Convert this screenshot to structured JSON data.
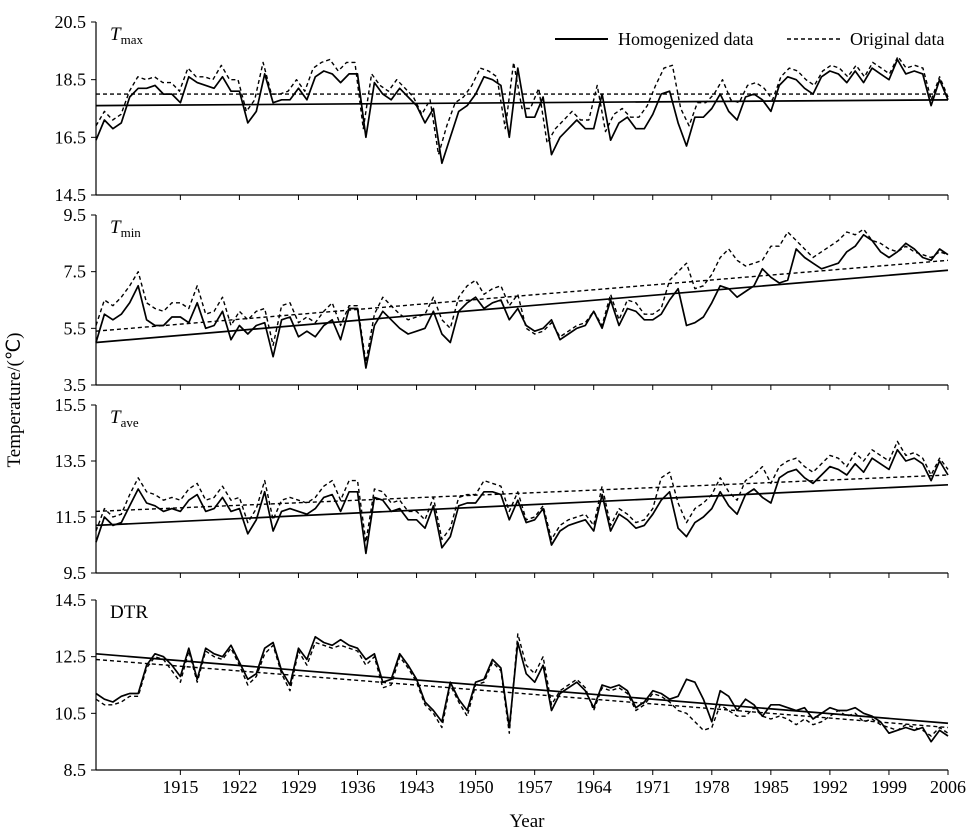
{
  "chart_data": {
    "type": "line",
    "ylabel": "Temperature/(℃)",
    "xlabel": "Year",
    "x_ticks": [
      "1915",
      "1922",
      "1929",
      "1936",
      "1943",
      "1950",
      "1957",
      "1964",
      "1971",
      "1978",
      "1985",
      "1992",
      "1999",
      "2006"
    ],
    "x_range": [
      1905,
      2006
    ],
    "legend": {
      "position": "top-right",
      "entries": [
        {
          "label": "Homogenized data",
          "style": "solid"
        },
        {
          "label": "Original data",
          "style": "dashed"
        }
      ]
    },
    "panels": [
      {
        "label_main": "T",
        "label_sub": "max",
        "ylim": [
          14.5,
          20.5
        ],
        "yticks": [
          "20.5",
          "18.5",
          "16.5",
          "14.5"
        ],
        "series": [
          {
            "name": "Homogenized data",
            "style": "solid",
            "values": [
              16.4,
              17.1,
              16.8,
              17.0,
              17.9,
              18.2,
              18.2,
              18.3,
              18.0,
              18.0,
              17.7,
              18.6,
              18.4,
              18.3,
              18.2,
              18.6,
              18.1,
              18.1,
              17.0,
              17.4,
              18.7,
              17.7,
              17.8,
              17.8,
              18.2,
              17.8,
              18.6,
              18.8,
              18.7,
              18.4,
              18.7,
              18.7,
              16.5,
              18.4,
              18.0,
              17.8,
              18.2,
              17.9,
              17.6,
              17.0,
              17.5,
              15.6,
              16.5,
              17.4,
              17.6,
              18.0,
              18.6,
              18.5,
              18.3,
              16.5,
              18.9,
              17.2,
              17.2,
              17.9,
              15.9,
              16.5,
              16.8,
              17.1,
              16.8,
              16.8,
              18.0,
              16.4,
              17.0,
              17.2,
              16.8,
              16.8,
              17.3,
              18.0,
              18.1,
              17.0,
              16.2,
              17.2,
              17.2,
              17.5,
              18.0,
              17.4,
              17.1,
              17.9,
              18.0,
              17.8,
              17.4,
              18.3,
              18.6,
              18.5,
              18.2,
              18.0,
              18.6,
              18.8,
              18.7,
              18.4,
              18.8,
              18.4,
              18.9,
              18.7,
              18.5,
              19.2,
              18.7,
              18.8,
              18.7,
              17.6,
              18.5,
              17.8
            ],
            "trend": [
              17.6,
              17.8
            ]
          },
          {
            "name": "Original data",
            "style": "dashed",
            "values": [
              16.9,
              17.4,
              17.1,
              17.3,
              18.1,
              18.6,
              18.5,
              18.6,
              18.4,
              18.4,
              18.1,
              18.9,
              18.6,
              18.6,
              18.5,
              19.0,
              18.5,
              18.5,
              17.4,
              17.8,
              19.1,
              18.0,
              18.0,
              18.1,
              18.5,
              18.1,
              18.9,
              19.1,
              19.2,
              18.8,
              19.1,
              19.1,
              16.8,
              18.7,
              18.3,
              18.1,
              18.5,
              18.2,
              17.9,
              17.3,
              17.8,
              15.9,
              16.9,
              17.7,
              17.9,
              18.3,
              18.9,
              18.8,
              18.6,
              16.8,
              19.1,
              17.5,
              17.5,
              18.2,
              16.3,
              16.8,
              17.1,
              17.4,
              17.1,
              17.1,
              18.3,
              16.7,
              17.3,
              17.5,
              17.2,
              17.2,
              17.6,
              18.3,
              18.9,
              19.0,
              17.5,
              16.9,
              17.7,
              17.7,
              18.0,
              18.5,
              17.8,
              17.7,
              18.3,
              18.4,
              18.2,
              17.8,
              18.6,
              18.9,
              18.8,
              18.5,
              18.3,
              18.8,
              19.0,
              18.9,
              18.6,
              19.0,
              18.6,
              19.1,
              18.9,
              18.7,
              19.3,
              18.9,
              19.0,
              18.9,
              17.8,
              18.6,
              17.9
            ],
            "trend": [
              18.0,
              18.0
            ]
          }
        ]
      },
      {
        "label_main": "T",
        "label_sub": "min",
        "ylim": [
          3.5,
          9.5
        ],
        "yticks": [
          "9.5",
          "7.5",
          "5.5",
          "3.5"
        ],
        "series": [
          {
            "name": "Homogenized data",
            "style": "solid",
            "values": [
              5.0,
              6.0,
              5.8,
              6.0,
              6.4,
              7.0,
              5.8,
              5.6,
              5.6,
              5.9,
              5.9,
              5.7,
              6.4,
              5.5,
              5.6,
              6.1,
              5.1,
              5.6,
              5.3,
              5.6,
              5.7,
              4.5,
              5.8,
              5.9,
              5.2,
              5.4,
              5.2,
              5.6,
              5.8,
              5.1,
              6.2,
              6.2,
              4.1,
              5.6,
              6.1,
              5.8,
              5.5,
              5.3,
              5.4,
              5.5,
              6.1,
              5.3,
              5.0,
              6.1,
              6.4,
              6.6,
              6.2,
              6.4,
              6.5,
              5.8,
              6.2,
              5.6,
              5.4,
              5.5,
              5.8,
              5.1,
              5.3,
              5.5,
              5.6,
              6.1,
              5.5,
              6.5,
              5.6,
              6.2,
              6.1,
              5.8,
              5.8,
              6.0,
              6.5,
              6.9,
              5.6,
              5.7,
              5.9,
              6.4,
              7.0,
              6.9,
              6.6,
              6.8,
              7.0,
              7.6,
              7.3,
              7.1,
              7.2,
              8.3,
              8.0,
              7.8,
              7.6,
              7.7,
              7.8,
              8.2,
              8.4,
              8.8,
              8.6,
              8.2,
              8.0,
              8.2,
              8.5,
              8.3,
              8.0,
              7.9,
              8.3,
              8.1
            ],
            "trend": [
              5.0,
              7.55
            ]
          },
          {
            "name": "Original data",
            "style": "dashed",
            "values": [
              5.6,
              6.5,
              6.3,
              6.6,
              7.0,
              7.5,
              6.4,
              6.2,
              6.1,
              6.4,
              6.4,
              6.2,
              7.0,
              6.0,
              6.1,
              6.6,
              5.6,
              6.1,
              5.8,
              6.1,
              6.2,
              4.9,
              6.3,
              6.4,
              5.7,
              5.9,
              5.7,
              6.1,
              6.4,
              5.6,
              6.3,
              6.3,
              4.3,
              6.0,
              6.6,
              6.3,
              6.0,
              5.8,
              5.9,
              6.0,
              6.6,
              5.8,
              5.5,
              6.6,
              7.0,
              7.2,
              6.7,
              6.9,
              7.0,
              6.3,
              6.7,
              5.5,
              5.3,
              5.4,
              5.7,
              5.2,
              5.4,
              5.6,
              5.7,
              6.1,
              5.6,
              6.7,
              5.8,
              6.5,
              6.4,
              6.0,
              6.0,
              6.2,
              7.2,
              7.5,
              7.8,
              6.9,
              7.0,
              7.4,
              8.0,
              8.3,
              7.9,
              7.7,
              7.8,
              7.9,
              8.4,
              8.4,
              8.9,
              8.6,
              8.3,
              8.0,
              8.2,
              8.4,
              8.6,
              8.9,
              8.8,
              9.0,
              8.6,
              8.5,
              8.3,
              8.2,
              8.4,
              8.2,
              8.1,
              8.0,
              8.2,
              8.1
            ],
            "trend": [
              5.4,
              7.9
            ]
          }
        ]
      },
      {
        "label_main": "T",
        "label_sub": "ave",
        "ylim": [
          9.5,
          15.5
        ],
        "yticks": [
          "15.5",
          "13.5",
          "11.5",
          "9.5"
        ],
        "series": [
          {
            "name": "Homogenized data",
            "style": "solid",
            "values": [
              10.6,
              11.5,
              11.2,
              11.3,
              11.9,
              12.5,
              12.0,
              11.9,
              11.7,
              11.8,
              11.7,
              12.1,
              12.3,
              11.7,
              11.8,
              12.2,
              11.7,
              11.8,
              10.9,
              11.4,
              12.4,
              11.0,
              11.7,
              11.8,
              11.7,
              11.6,
              11.8,
              12.2,
              12.3,
              11.7,
              12.4,
              12.4,
              10.2,
              12.2,
              12.1,
              11.7,
              11.8,
              11.4,
              11.4,
              11.1,
              11.9,
              10.4,
              10.8,
              11.9,
              12.0,
              12.0,
              12.4,
              12.4,
              12.3,
              11.4,
              12.1,
              11.3,
              11.4,
              11.8,
              10.5,
              11.0,
              11.2,
              11.3,
              11.4,
              11.0,
              12.3,
              11.0,
              11.6,
              11.4,
              11.1,
              11.2,
              11.6,
              12.1,
              12.4,
              11.1,
              10.8,
              11.3,
              11.5,
              11.8,
              12.4,
              11.9,
              11.6,
              12.3,
              12.5,
              12.2,
              12.0,
              12.9,
              13.1,
              13.2,
              12.9,
              12.7,
              13.0,
              13.3,
              13.2,
              13.0,
              13.4,
              13.1,
              13.6,
              13.4,
              13.2,
              13.9,
              13.5,
              13.6,
              13.4,
              12.8,
              13.5,
              13.0
            ],
            "trend": [
              11.2,
              12.65
            ]
          },
          {
            "name": "Original data",
            "style": "dashed",
            "values": [
              11.0,
              11.8,
              11.5,
              11.6,
              12.3,
              12.9,
              12.4,
              12.3,
              12.1,
              12.2,
              12.1,
              12.5,
              12.7,
              12.1,
              12.2,
              12.6,
              12.1,
              12.2,
              11.3,
              11.8,
              12.8,
              11.4,
              12.1,
              12.2,
              12.1,
              12.0,
              12.2,
              12.6,
              12.8,
              12.1,
              12.8,
              12.8,
              10.6,
              12.5,
              12.4,
              12.0,
              12.1,
              11.7,
              11.7,
              11.4,
              12.2,
              10.7,
              11.1,
              12.2,
              12.3,
              12.3,
              12.8,
              12.7,
              12.6,
              11.7,
              12.4,
              11.4,
              11.5,
              11.9,
              10.7,
              11.2,
              11.4,
              11.5,
              11.6,
              11.2,
              12.6,
              11.2,
              11.8,
              11.6,
              11.3,
              11.4,
              11.8,
              12.9,
              13.1,
              12.0,
              11.3,
              11.8,
              12.0,
              12.3,
              12.9,
              12.4,
              12.1,
              12.8,
              13.0,
              13.3,
              12.7,
              13.3,
              13.5,
              13.6,
              13.3,
              13.1,
              13.4,
              13.7,
              13.6,
              13.3,
              13.8,
              13.5,
              13.9,
              13.7,
              13.5,
              14.2,
              13.7,
              13.8,
              13.6,
              13.0,
              13.6,
              13.2
            ],
            "trend": [
              11.7,
              13.0
            ]
          }
        ]
      },
      {
        "label_main": "DTR",
        "label_sub": "",
        "ylim": [
          8.5,
          14.5
        ],
        "yticks": [
          "14.5",
          "12.5",
          "10.5",
          "8.5"
        ],
        "series": [
          {
            "name": "Homogenized data",
            "style": "solid",
            "values": [
              11.2,
              11.0,
              10.9,
              11.1,
              11.2,
              11.2,
              12.2,
              12.6,
              12.5,
              12.2,
              11.8,
              12.8,
              11.7,
              12.8,
              12.6,
              12.5,
              12.9,
              12.3,
              11.7,
              11.9,
              12.8,
              13.0,
              12.0,
              11.5,
              12.8,
              12.4,
              13.2,
              13.0,
              12.9,
              13.1,
              12.9,
              12.8,
              12.4,
              12.6,
              11.6,
              11.7,
              12.6,
              12.2,
              11.7,
              10.9,
              10.6,
              10.2,
              11.6,
              11.0,
              10.6,
              11.6,
              11.7,
              12.4,
              12.1,
              10.0,
              13.0,
              11.9,
              11.6,
              12.2,
              10.6,
              11.2,
              11.4,
              11.6,
              11.3,
              10.7,
              11.5,
              11.4,
              11.5,
              11.3,
              10.7,
              10.9,
              11.3,
              11.2,
              11.0,
              11.1,
              11.7,
              11.6,
              11.0,
              10.2,
              11.3,
              11.1,
              10.6,
              11.0,
              10.8,
              10.4,
              10.8,
              10.8,
              10.7,
              10.6,
              10.7,
              10.3,
              10.5,
              10.7,
              10.6,
              10.6,
              10.7,
              10.5,
              10.4,
              10.2,
              9.8,
              9.9,
              10.0,
              9.9,
              10.0,
              9.5,
              9.9,
              9.7
            ],
            "trend": [
              12.6,
              10.15
            ]
          },
          {
            "name": "Original data",
            "style": "dashed",
            "values": [
              11.0,
              10.8,
              10.8,
              10.9,
              11.1,
              11.1,
              12.1,
              12.5,
              12.4,
              12.0,
              11.6,
              12.7,
              11.6,
              12.7,
              12.5,
              12.4,
              12.8,
              12.2,
              11.5,
              11.8,
              12.6,
              12.9,
              11.9,
              11.3,
              12.7,
              12.2,
              13.0,
              12.9,
              12.8,
              12.9,
              12.8,
              12.7,
              12.2,
              12.5,
              11.4,
              11.5,
              12.5,
              12.1,
              11.6,
              10.8,
              10.5,
              10.0,
              11.5,
              10.9,
              10.4,
              11.5,
              11.6,
              12.3,
              12.0,
              9.8,
              13.3,
              12.2,
              11.9,
              12.5,
              10.8,
              11.3,
              11.5,
              11.7,
              11.4,
              10.6,
              11.4,
              11.3,
              11.4,
              11.2,
              10.6,
              10.8,
              11.2,
              11.1,
              10.9,
              10.6,
              10.5,
              10.2,
              9.9,
              10.0,
              10.8,
              10.6,
              10.4,
              10.4,
              10.7,
              10.4,
              10.3,
              10.4,
              10.3,
              10.1,
              10.3,
              10.1,
              10.2,
              10.4,
              10.6,
              10.4,
              10.5,
              10.2,
              10.3,
              10.1,
              10.0,
              9.9,
              10.1,
              10.0,
              9.9,
              9.7,
              10.0,
              9.8
            ],
            "trend": [
              12.4,
              10.0
            ]
          }
        ]
      }
    ]
  }
}
